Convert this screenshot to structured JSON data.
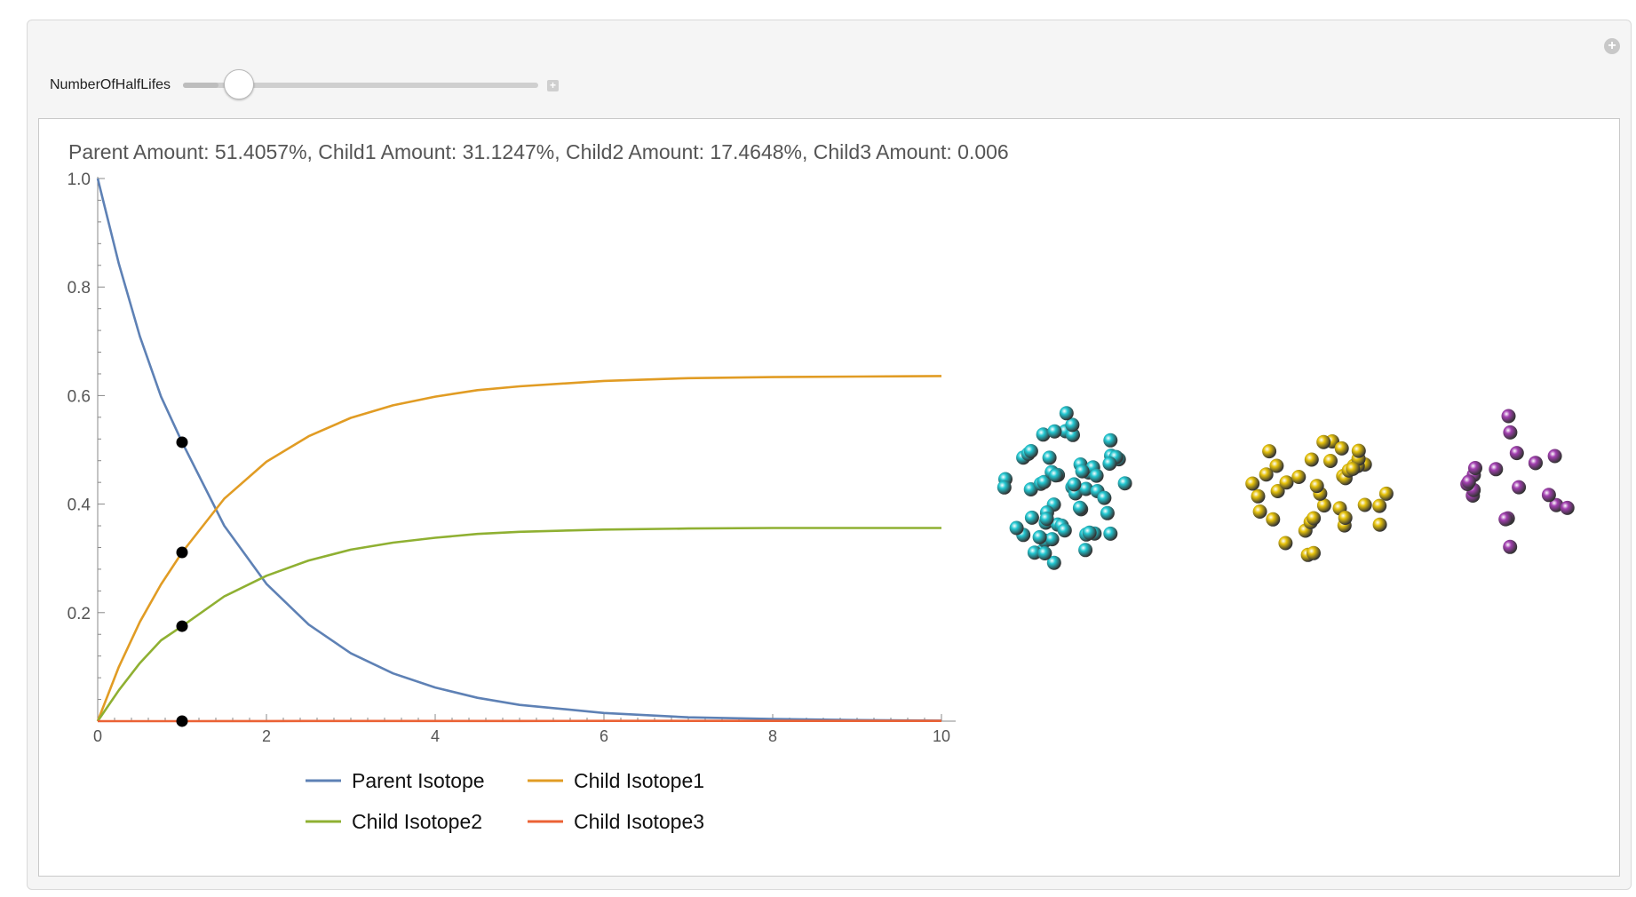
{
  "controls": {
    "label": "NumberOfHalfLifes",
    "slider_value": 1,
    "slider_min": 0,
    "slider_max": 10
  },
  "chart_data": {
    "type": "line",
    "title": "Parent Amount: 51.4057%, Child1 Amount: 31.1247%, Child2 Amount: 17.4648%, Child3 Amount: 0.006",
    "xlabel": "",
    "ylabel": "",
    "xlim": [
      0,
      10
    ],
    "ylim": [
      0,
      1.0
    ],
    "x_ticks": [
      "0",
      "2",
      "4",
      "6",
      "8",
      "10"
    ],
    "y_ticks": [
      "0.2",
      "0.4",
      "0.6",
      "0.8",
      "1.0"
    ],
    "grid": false,
    "legend_position": "bottom",
    "x": [
      0,
      0.25,
      0.5,
      0.75,
      1,
      1.5,
      2,
      2.5,
      3,
      3.5,
      4,
      4.5,
      5,
      6,
      7,
      8,
      9,
      10
    ],
    "series": [
      {
        "name": "Parent Isotope",
        "color": "#5e81b5",
        "values": [
          1.0,
          0.843,
          0.709,
          0.598,
          0.514,
          0.36,
          0.253,
          0.178,
          0.125,
          0.088,
          0.062,
          0.043,
          0.03,
          0.015,
          0.007,
          0.004,
          0.002,
          0.001
        ]
      },
      {
        "name": "Child Isotope1",
        "color": "#e19c24",
        "values": [
          0,
          0.1,
          0.183,
          0.252,
          0.311,
          0.41,
          0.478,
          0.525,
          0.559,
          0.582,
          0.598,
          0.61,
          0.617,
          0.627,
          0.632,
          0.634,
          0.635,
          0.636
        ]
      },
      {
        "name": "Child Isotope2",
        "color": "#8fb032",
        "values": [
          0,
          0.057,
          0.107,
          0.149,
          0.175,
          0.23,
          0.268,
          0.296,
          0.316,
          0.329,
          0.338,
          0.345,
          0.349,
          0.353,
          0.355,
          0.356,
          0.356,
          0.356
        ]
      },
      {
        "name": "Child Isotope3",
        "color": "#eb6235",
        "values": [
          0,
          0,
          0,
          0,
          6e-05,
          0.0001,
          0.0002,
          0.0003,
          0.0003,
          0.0004,
          0.0004,
          0.0004,
          0.0004,
          0.0005,
          0.0005,
          0.0005,
          0.0005,
          0.0005
        ]
      }
    ],
    "markers": [
      {
        "x": 1,
        "y": 0.514
      },
      {
        "x": 1,
        "y": 0.311
      },
      {
        "x": 1,
        "y": 0.175
      },
      {
        "x": 1,
        "y": 6e-05
      }
    ],
    "marker_color": "#000000"
  },
  "particles": {
    "colors": [
      "#22c7d1",
      "#e6c20a",
      "#a23fb0"
    ]
  }
}
